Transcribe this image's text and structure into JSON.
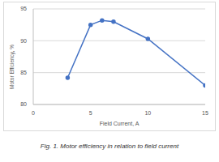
{
  "chart_data": {
    "type": "line",
    "title": "Fig. 1. Motor efficiency in relation to field current",
    "x_label": "Field Current, A",
    "y_label": "Motor Efficiency, %",
    "x": [
      3,
      5,
      6,
      7,
      10,
      15
    ],
    "values": [
      84.2,
      92.5,
      93.2,
      93.0,
      90.3,
      83.0
    ],
    "color": "#4472c4",
    "marker": "circle",
    "xlim": [
      0,
      15
    ],
    "xticks": [
      0,
      5,
      10,
      15
    ],
    "ylim": [
      80,
      95
    ],
    "yticks": [
      80,
      85,
      90,
      95
    ],
    "grid": true
  }
}
